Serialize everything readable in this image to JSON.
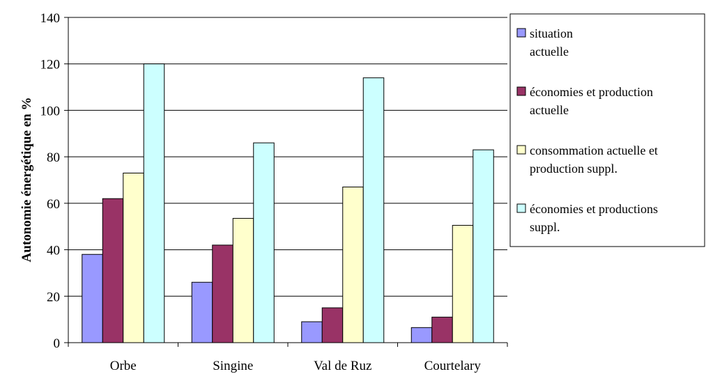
{
  "chart_data": {
    "type": "bar",
    "categories": [
      "Orbe",
      "Singine",
      "Val de Ruz",
      "Courtelary"
    ],
    "series": [
      {
        "name": "situation actuelle",
        "color": "#9999FF",
        "values": [
          38,
          26,
          9,
          6.5
        ]
      },
      {
        "name": "économies et production actuelle",
        "color": "#993366",
        "values": [
          62,
          42,
          15,
          11
        ]
      },
      {
        "name": "consommation actuelle et production suppl.",
        "color": "#FFFFCC",
        "values": [
          73,
          53.5,
          67,
          50.5
        ]
      },
      {
        "name": "économies et productions suppl.",
        "color": "#CCFFFF",
        "values": [
          120,
          86,
          114,
          83
        ]
      }
    ],
    "ylabel": "Autonomie énergétique en %",
    "xlabel": "",
    "title": "",
    "ylim": [
      0,
      140
    ],
    "yticks": [
      0,
      20,
      40,
      60,
      80,
      100,
      120,
      140
    ],
    "grid": true,
    "legend_position": "right"
  }
}
